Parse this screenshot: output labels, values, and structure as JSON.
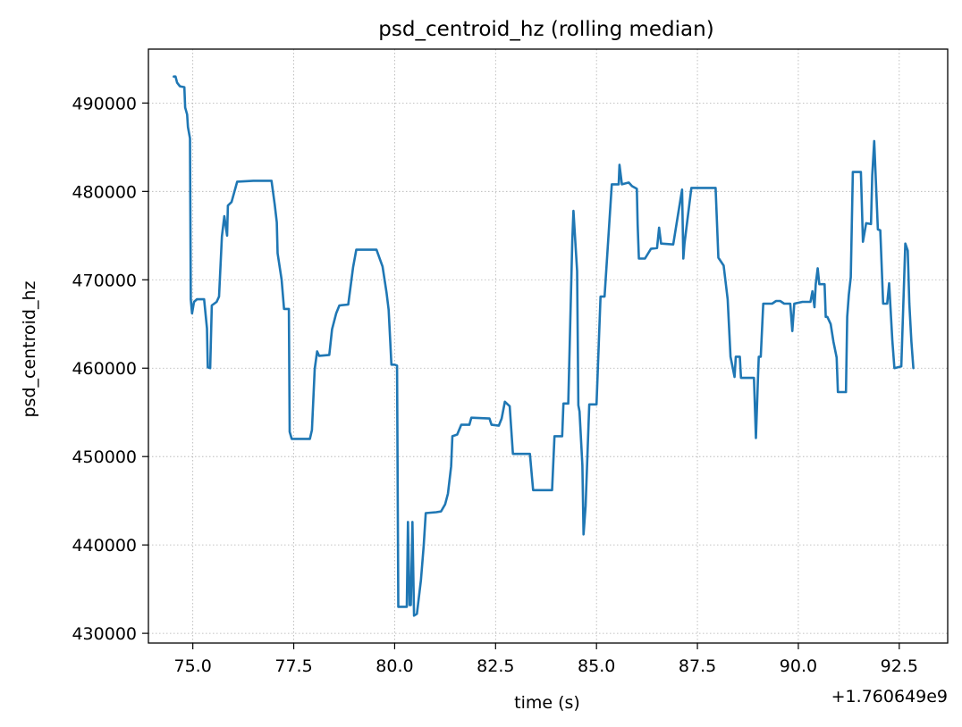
{
  "chart_data": {
    "type": "line",
    "title": "psd_centroid_hz (rolling median)",
    "xlabel": "time (s)",
    "ylabel": "psd_centroid_hz",
    "x_offset_label": "+1.760649e9",
    "xlim": [
      73.9,
      93.7
    ],
    "ylim": [
      428900,
      496100
    ],
    "x_ticks": [
      75.0,
      77.5,
      80.0,
      82.5,
      85.0,
      87.5,
      90.0,
      92.5
    ],
    "x_tick_labels": [
      "75.0",
      "77.5",
      "80.0",
      "82.5",
      "85.0",
      "87.5",
      "90.0",
      "92.5"
    ],
    "y_ticks": [
      430000,
      440000,
      450000,
      460000,
      470000,
      480000,
      490000
    ],
    "y_tick_labels": [
      "430000",
      "440000",
      "450000",
      "460000",
      "470000",
      "480000",
      "490000"
    ],
    "grid": true,
    "series": [
      {
        "color": "#1f77b4",
        "points": [
          [
            74.53,
            493000
          ],
          [
            74.57,
            493000
          ],
          [
            74.61,
            492300
          ],
          [
            74.68,
            491900
          ],
          [
            74.79,
            491800
          ],
          [
            74.81,
            489500
          ],
          [
            74.86,
            488700
          ],
          [
            74.88,
            487300
          ],
          [
            74.93,
            486000
          ],
          [
            74.95,
            467800
          ],
          [
            74.98,
            466200
          ],
          [
            75.03,
            467500
          ],
          [
            75.1,
            467800
          ],
          [
            75.2,
            467800
          ],
          [
            75.28,
            467800
          ],
          [
            75.35,
            464500
          ],
          [
            75.37,
            460100
          ],
          [
            75.43,
            460000
          ],
          [
            75.47,
            467100
          ],
          [
            75.59,
            467500
          ],
          [
            75.65,
            468100
          ],
          [
            75.72,
            474900
          ],
          [
            75.78,
            477200
          ],
          [
            75.85,
            475000
          ],
          [
            75.87,
            478400
          ],
          [
            75.96,
            478800
          ],
          [
            76.1,
            481100
          ],
          [
            76.5,
            481200
          ],
          [
            76.95,
            481200
          ],
          [
            77.03,
            478500
          ],
          [
            77.08,
            476500
          ],
          [
            77.1,
            473000
          ],
          [
            77.2,
            470000
          ],
          [
            77.26,
            466700
          ],
          [
            77.38,
            466700
          ],
          [
            77.4,
            452800
          ],
          [
            77.45,
            452000
          ],
          [
            77.9,
            452000
          ],
          [
            77.95,
            453000
          ],
          [
            78.02,
            459900
          ],
          [
            78.08,
            461900
          ],
          [
            78.13,
            461400
          ],
          [
            78.38,
            461500
          ],
          [
            78.45,
            464400
          ],
          [
            78.55,
            466200
          ],
          [
            78.63,
            467100
          ],
          [
            78.85,
            467200
          ],
          [
            78.97,
            471400
          ],
          [
            79.05,
            473400
          ],
          [
            79.55,
            473400
          ],
          [
            79.7,
            471500
          ],
          [
            79.8,
            468500
          ],
          [
            79.85,
            466600
          ],
          [
            79.92,
            460400
          ],
          [
            80.0,
            460400
          ],
          [
            80.06,
            460300
          ],
          [
            80.09,
            433000
          ],
          [
            80.3,
            433000
          ],
          [
            80.33,
            442600
          ],
          [
            80.37,
            433200
          ],
          [
            80.4,
            433200
          ],
          [
            80.44,
            442600
          ],
          [
            80.48,
            432000
          ],
          [
            80.55,
            432200
          ],
          [
            80.65,
            436000
          ],
          [
            80.72,
            439900
          ],
          [
            80.77,
            443600
          ],
          [
            81.03,
            443700
          ],
          [
            81.15,
            443800
          ],
          [
            81.25,
            444600
          ],
          [
            81.32,
            445800
          ],
          [
            81.4,
            448900
          ],
          [
            81.43,
            452300
          ],
          [
            81.55,
            452500
          ],
          [
            81.65,
            453600
          ],
          [
            81.85,
            453600
          ],
          [
            81.9,
            454400
          ],
          [
            82.35,
            454300
          ],
          [
            82.4,
            453600
          ],
          [
            82.58,
            453500
          ],
          [
            82.65,
            454300
          ],
          [
            82.73,
            456200
          ],
          [
            82.85,
            455700
          ],
          [
            82.93,
            450300
          ],
          [
            83.35,
            450300
          ],
          [
            83.43,
            446200
          ],
          [
            83.7,
            446200
          ],
          [
            83.9,
            446200
          ],
          [
            83.96,
            452300
          ],
          [
            84.15,
            452300
          ],
          [
            84.18,
            456000
          ],
          [
            84.3,
            456000
          ],
          [
            84.4,
            474400
          ],
          [
            84.43,
            477800
          ],
          [
            84.52,
            471000
          ],
          [
            84.55,
            455800
          ],
          [
            84.58,
            455100
          ],
          [
            84.65,
            449000
          ],
          [
            84.68,
            441200
          ],
          [
            84.73,
            444400
          ],
          [
            84.82,
            455900
          ],
          [
            85.0,
            455900
          ],
          [
            85.1,
            468100
          ],
          [
            85.2,
            468100
          ],
          [
            85.38,
            480800
          ],
          [
            85.55,
            480800
          ],
          [
            85.57,
            483000
          ],
          [
            85.63,
            480800
          ],
          [
            85.8,
            481000
          ],
          [
            85.88,
            480600
          ],
          [
            86.0,
            480300
          ],
          [
            86.02,
            476300
          ],
          [
            86.05,
            472400
          ],
          [
            86.2,
            472400
          ],
          [
            86.35,
            473500
          ],
          [
            86.5,
            473600
          ],
          [
            86.55,
            475900
          ],
          [
            86.6,
            474100
          ],
          [
            86.9,
            474000
          ],
          [
            87.05,
            478200
          ],
          [
            87.12,
            480200
          ],
          [
            87.15,
            472400
          ],
          [
            87.18,
            474100
          ],
          [
            87.35,
            480400
          ],
          [
            87.95,
            480400
          ],
          [
            88.02,
            472500
          ],
          [
            88.15,
            471600
          ],
          [
            88.25,
            467800
          ],
          [
            88.32,
            461300
          ],
          [
            88.42,
            459000
          ],
          [
            88.45,
            461300
          ],
          [
            88.55,
            461300
          ],
          [
            88.58,
            458900
          ],
          [
            88.9,
            458900
          ],
          [
            88.95,
            452100
          ],
          [
            89.0,
            458900
          ],
          [
            89.02,
            461300
          ],
          [
            89.07,
            461300
          ],
          [
            89.13,
            467300
          ],
          [
            89.35,
            467300
          ],
          [
            89.45,
            467600
          ],
          [
            89.55,
            467600
          ],
          [
            89.65,
            467300
          ],
          [
            89.8,
            467300
          ],
          [
            89.85,
            464200
          ],
          [
            89.9,
            467300
          ],
          [
            90.0,
            467400
          ],
          [
            90.1,
            467500
          ],
          [
            90.3,
            467500
          ],
          [
            90.35,
            468700
          ],
          [
            90.4,
            466900
          ],
          [
            90.43,
            469500
          ],
          [
            90.48,
            471300
          ],
          [
            90.52,
            469500
          ],
          [
            90.65,
            469500
          ],
          [
            90.68,
            465800
          ],
          [
            90.72,
            465800
          ],
          [
            90.8,
            465000
          ],
          [
            90.87,
            463000
          ],
          [
            90.95,
            461200
          ],
          [
            90.98,
            457300
          ],
          [
            91.18,
            457300
          ],
          [
            91.21,
            465800
          ],
          [
            91.25,
            468300
          ],
          [
            91.3,
            470300
          ],
          [
            91.35,
            482200
          ],
          [
            91.55,
            482200
          ],
          [
            91.6,
            474300
          ],
          [
            91.68,
            476400
          ],
          [
            91.8,
            476300
          ],
          [
            91.83,
            481800
          ],
          [
            91.88,
            485700
          ],
          [
            91.97,
            475700
          ],
          [
            92.03,
            475600
          ],
          [
            92.1,
            467300
          ],
          [
            92.2,
            467300
          ],
          [
            92.25,
            469600
          ],
          [
            92.33,
            463100
          ],
          [
            92.38,
            460000
          ],
          [
            92.55,
            460200
          ],
          [
            92.65,
            474100
          ],
          [
            92.71,
            473300
          ],
          [
            92.75,
            467300
          ],
          [
            92.8,
            463000
          ],
          [
            92.85,
            460000
          ]
        ]
      }
    ]
  }
}
